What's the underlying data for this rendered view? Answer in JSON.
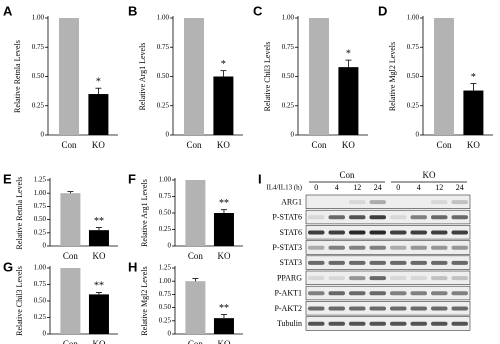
{
  "chart_data": [
    {
      "type": "bar",
      "panel": "A",
      "ylabel": "Relative Retnla Levels",
      "categories": [
        "Con",
        "KO"
      ],
      "values": [
        1.0,
        0.35
      ],
      "errors": [
        null,
        0.05
      ],
      "annotation": "*",
      "colors": [
        "#b3b3b3",
        "#000000"
      ],
      "ylim": [
        0,
        1.0
      ],
      "yticks": [
        0,
        0.25,
        {
          "value": 0.5,
          "label": "0.50"
        },
        0.75,
        {
          "value": 1.0,
          "label": "1.00"
        }
      ]
    },
    {
      "type": "bar",
      "panel": "B",
      "ylabel": "Relative Arg1 Levels",
      "categories": [
        "Con",
        "KO"
      ],
      "values": [
        1.0,
        0.5
      ],
      "errors": [
        null,
        0.05
      ],
      "annotation": "*",
      "colors": [
        "#b3b3b3",
        "#000000"
      ],
      "ylim": [
        0,
        1.0
      ],
      "yticks": [
        0,
        0.25,
        {
          "value": 0.5,
          "label": "0.50"
        },
        0.75,
        {
          "value": 1.0,
          "label": "1.00"
        }
      ]
    },
    {
      "type": "bar",
      "panel": "C",
      "ylabel": "Relative Chil3 Levels",
      "categories": [
        "Con",
        "KO"
      ],
      "values": [
        1.0,
        0.58
      ],
      "errors": [
        null,
        0.06
      ],
      "annotation": "*",
      "colors": [
        "#b3b3b3",
        "#000000"
      ],
      "ylim": [
        0,
        1.0
      ],
      "yticks": [
        0,
        0.25,
        {
          "value": 0.5,
          "label": "0.50"
        },
        0.75,
        {
          "value": 1.0,
          "label": "1.00"
        }
      ]
    },
    {
      "type": "bar",
      "panel": "D",
      "ylabel": "Relative Mgl2 Levels",
      "categories": [
        "Con",
        "KO"
      ],
      "values": [
        1.0,
        0.38
      ],
      "errors": [
        null,
        0.06
      ],
      "annotation": "*",
      "colors": [
        "#b3b3b3",
        "#000000"
      ],
      "ylim": [
        0,
        1.0
      ],
      "yticks": [
        0,
        0.25,
        {
          "value": 0.5,
          "label": "0.50"
        },
        0.75,
        {
          "value": 1.0,
          "label": "1.00"
        }
      ]
    },
    {
      "type": "bar",
      "panel": "E",
      "ylabel": "Relative Retnla Levels",
      "categories": [
        "Con",
        "KO"
      ],
      "values": [
        1.0,
        0.3
      ],
      "errors": [
        0.03,
        0.05
      ],
      "annotation": "**",
      "colors": [
        "#b3b3b3",
        "#000000"
      ],
      "ylim": [
        0,
        1.25
      ],
      "yticks": [
        0,
        0.25,
        {
          "value": 0.5,
          "label": "0.50"
        },
        0.75,
        {
          "value": 1.0,
          "label": "1.00"
        },
        1.25
      ]
    },
    {
      "type": "bar",
      "panel": "F",
      "ylabel": "Relative Arg1 Levels",
      "categories": [
        "Con",
        "KO"
      ],
      "values": [
        1.0,
        0.5
      ],
      "errors": [
        null,
        0.05
      ],
      "annotation": "**",
      "colors": [
        "#b3b3b3",
        "#000000"
      ],
      "ylim": [
        0,
        1.0
      ],
      "yticks": [
        0,
        0.25,
        {
          "value": 0.5,
          "label": "0.50"
        },
        0.75,
        {
          "value": 1.0,
          "label": "1.00"
        }
      ]
    },
    {
      "type": "bar",
      "panel": "G",
      "ylabel": "Relative Chil3 Levels",
      "categories": [
        "Con",
        "KO"
      ],
      "values": [
        1.0,
        0.6
      ],
      "errors": [
        null,
        0.03
      ],
      "annotation": "**",
      "colors": [
        "#b3b3b3",
        "#000000"
      ],
      "ylim": [
        0,
        1.0
      ],
      "yticks": [
        0,
        0.25,
        {
          "value": 0.5,
          "label": "0.50"
        },
        0.75,
        {
          "value": 1.0,
          "label": "1.00"
        }
      ]
    },
    {
      "type": "bar",
      "panel": "H",
      "ylabel": "Relative Mgl2 Levels",
      "categories": [
        "Con",
        "KO"
      ],
      "values": [
        1.0,
        0.3
      ],
      "errors": [
        0.05,
        0.07
      ],
      "annotation": "**",
      "colors": [
        "#b3b3b3",
        "#000000"
      ],
      "ylim": [
        0,
        1.25
      ],
      "yticks": [
        0,
        0.25,
        {
          "value": 0.5,
          "label": "0.50"
        },
        0.75,
        {
          "value": 1.0,
          "label": "1.00"
        },
        1.25
      ]
    }
  ],
  "blot": {
    "panel": "I",
    "groups": [
      "Con",
      "KO"
    ],
    "treatment": "IL4/IL13 (h)",
    "times": [
      "0",
      "4",
      "12",
      "24"
    ],
    "rows": [
      "ARG1",
      "P-STAT6",
      "STAT6",
      "P-STAT3",
      "STAT3",
      "PPARG",
      "P-AKT1",
      "P-AKT2",
      "Tubulin"
    ]
  }
}
